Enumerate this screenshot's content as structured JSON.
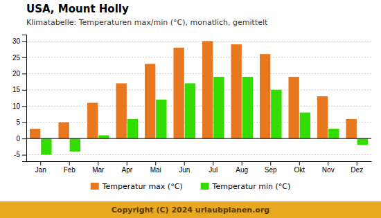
{
  "chart_data": {
    "type": "bar",
    "title": "USA, Mount Holly",
    "subtitle": "Klimatabelle: Temperaturen max/min (°C), monatlich, gemittelt",
    "categories": [
      "Jan",
      "Feb",
      "Mar",
      "Apr",
      "Mai",
      "Jun",
      "Jul",
      "Aug",
      "Sep",
      "Okt",
      "Nov",
      "Dez"
    ],
    "series": [
      {
        "name": "Temperatur max (°C)",
        "color": "#E87820",
        "values": [
          3,
          5,
          11,
          17,
          23,
          28,
          30,
          29,
          26,
          19,
          13,
          6
        ]
      },
      {
        "name": "Temperatur min (°C)",
        "color": "#33DD00",
        "values": [
          -5,
          -4,
          1,
          6,
          12,
          17,
          19,
          19,
          15,
          8,
          3,
          -2
        ]
      }
    ],
    "ylim": [
      -7,
      32
    ],
    "yticks": [
      -5,
      0,
      5,
      10,
      15,
      20,
      25,
      30
    ],
    "grid": true,
    "legend": "bottom",
    "annotations": [
      "Copyright (C) 2024 urlaubplanen.org"
    ]
  }
}
